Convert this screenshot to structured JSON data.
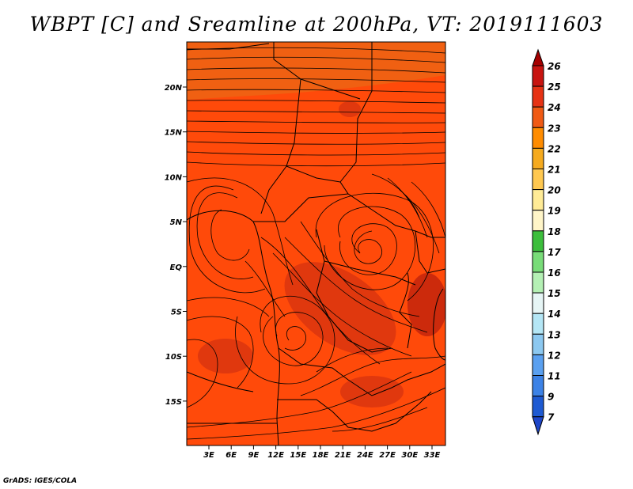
{
  "title": "WBPT [C] and Sreamline at 200hPa, VT: 2019111603",
  "credit": "GrADS: IGES/COLA",
  "map": {
    "lat_labels": [
      "20N",
      "15N",
      "10N",
      "5N",
      "EQ",
      "5S",
      "10S",
      "15S"
    ],
    "lon_labels": [
      "3E",
      "6E",
      "9E",
      "12E",
      "15E",
      "18E",
      "21E",
      "24E",
      "27E",
      "30E",
      "33E"
    ],
    "fill_colors": {
      "base": "#ff4a0a",
      "warm": "#f06012",
      "hot": "#e0380e",
      "hottest": "#cc2a0c"
    }
  },
  "colorbar": {
    "labels": [
      "26",
      "25",
      "24",
      "23",
      "22",
      "21",
      "20",
      "19",
      "18",
      "17",
      "16",
      "15",
      "14",
      "13",
      "12",
      "11",
      "9",
      "7"
    ],
    "colors": [
      "#a50000",
      "#c81410",
      "#e63214",
      "#f05a14",
      "#ff8c00",
      "#f5aa1e",
      "#ffc850",
      "#ffeb96",
      "#fff5c8",
      "#3cbe3c",
      "#78dc78",
      "#b4f0b4",
      "#e6f5f5",
      "#b4e6f5",
      "#8cc8f0",
      "#5aa0f0",
      "#3c82e6",
      "#1e5ad2",
      "#1e46c8"
    ]
  }
}
